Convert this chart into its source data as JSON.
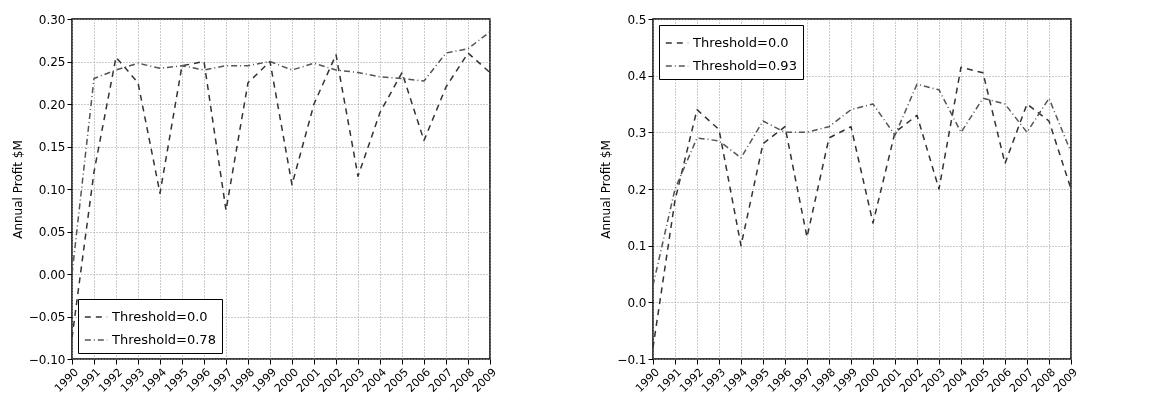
{
  "chart_data": [
    {
      "type": "line",
      "ylabel": "Annual Profit $M",
      "x": [
        1990,
        1991,
        1992,
        1993,
        1994,
        1995,
        1996,
        1997,
        1998,
        1999,
        2000,
        2001,
        2002,
        2003,
        2004,
        2005,
        2006,
        2007,
        2008,
        2009
      ],
      "series": [
        {
          "name": "Threshold=0.0",
          "color": "#333333",
          "line_style": "dashed",
          "values": [
            -0.075,
            0.12,
            0.255,
            0.225,
            0.095,
            0.245,
            0.25,
            0.075,
            0.225,
            0.25,
            0.105,
            0.2,
            0.258,
            0.115,
            0.19,
            0.237,
            0.157,
            0.22,
            0.26,
            0.237
          ]
        },
        {
          "name": "Threshold=0.78",
          "color": "#555555",
          "line_style": "dashdot",
          "values": [
            0.0,
            0.23,
            0.24,
            0.248,
            0.242,
            0.245,
            0.24,
            0.245,
            0.245,
            0.25,
            0.24,
            0.248,
            0.24,
            0.237,
            0.232,
            0.23,
            0.227,
            0.26,
            0.265,
            0.285
          ]
        }
      ],
      "xlim": [
        1990,
        2009
      ],
      "xticks": [
        1990,
        1991,
        1992,
        1993,
        1994,
        1995,
        1996,
        1997,
        1998,
        1999,
        2000,
        2001,
        2002,
        2003,
        2004,
        2005,
        2006,
        2007,
        2008,
        2009
      ],
      "ylim": [
        -0.1,
        0.3
      ],
      "yticks": [
        {
          "value": -0.1,
          "label": "−0.10"
        },
        {
          "value": -0.05,
          "label": "−0.05"
        },
        {
          "value": 0,
          "label": "0.00"
        },
        {
          "value": 0.05,
          "label": "0.05"
        },
        {
          "value": 0.1,
          "label": "0.10"
        },
        {
          "value": 0.15,
          "label": "0.15"
        },
        {
          "value": 0.2,
          "label": "0.20"
        },
        {
          "value": 0.25,
          "label": "0.25"
        },
        {
          "value": 0.3,
          "label": "0.30"
        }
      ],
      "grid": true,
      "legend": "bottom left"
    },
    {
      "type": "line",
      "ylabel": "Annual Profit $M",
      "x": [
        1990,
        1991,
        1992,
        1993,
        1994,
        1995,
        1996,
        1997,
        1998,
        1999,
        2000,
        2001,
        2002,
        2003,
        2004,
        2005,
        2006,
        2007,
        2008,
        2009
      ],
      "series": [
        {
          "name": "Threshold=0.0",
          "color": "#333333",
          "line_style": "dashed",
          "values": [
            -0.08,
            0.18,
            0.34,
            0.305,
            0.1,
            0.28,
            0.31,
            0.115,
            0.29,
            0.31,
            0.14,
            0.3,
            0.33,
            0.2,
            0.415,
            0.405,
            0.245,
            0.35,
            0.32,
            0.2
          ]
        },
        {
          "name": "Threshold=0.93",
          "color": "#555555",
          "line_style": "dashdot",
          "values": [
            0.03,
            0.2,
            0.29,
            0.285,
            0.255,
            0.32,
            0.3,
            0.3,
            0.31,
            0.34,
            0.35,
            0.295,
            0.385,
            0.375,
            0.3,
            0.36,
            0.35,
            0.3,
            0.36,
            0.265
          ]
        }
      ],
      "xlim": [
        1990,
        2009
      ],
      "xticks": [
        1990,
        1991,
        1992,
        1993,
        1994,
        1995,
        1996,
        1997,
        1998,
        1999,
        2000,
        2001,
        2002,
        2003,
        2004,
        2005,
        2006,
        2007,
        2008,
        2009
      ],
      "ylim": [
        -0.1,
        0.5
      ],
      "yticks": [
        {
          "value": -0.1,
          "label": "−0.1"
        },
        {
          "value": 0,
          "label": "0.0"
        },
        {
          "value": 0.1,
          "label": "0.1"
        },
        {
          "value": 0.2,
          "label": "0.2"
        },
        {
          "value": 0.3,
          "label": "0.3"
        },
        {
          "value": 0.4,
          "label": "0.4"
        },
        {
          "value": 0.5,
          "label": "0.5"
        }
      ],
      "grid": true,
      "legend": "top left"
    }
  ]
}
